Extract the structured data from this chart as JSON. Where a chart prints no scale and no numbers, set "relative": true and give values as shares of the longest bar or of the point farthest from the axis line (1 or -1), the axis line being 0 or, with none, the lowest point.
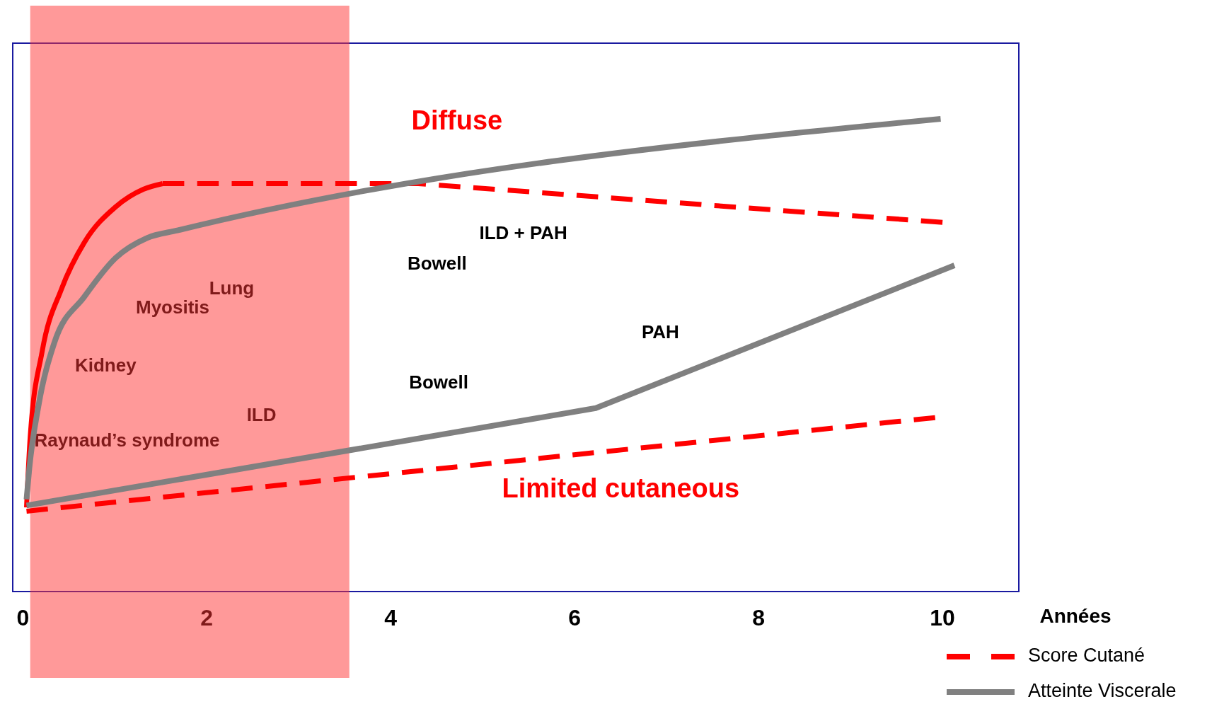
{
  "chart_data": {
    "type": "line",
    "relative": true,
    "xlabel": "Années",
    "xlim": [
      -0.11,
      10.83
    ],
    "xticks": [
      0,
      2,
      4,
      6,
      8,
      10
    ],
    "grid": false,
    "legend": "bottom right",
    "tick_labels": "x",
    "bands": [
      {
        "axis": "x",
        "from": 0.08,
        "to": 3.55,
        "color": "#ff3333"
      }
    ],
    "series": [
      {
        "color": "#ff0000",
        "line_style": "solid",
        "x": [
          0.04,
          0.08,
          0.21,
          0.42,
          0.67,
          1.01,
          1.31,
          1.52
        ],
        "values": [
          0.178,
          0.327,
          0.508,
          0.64,
          0.739,
          0.814,
          0.851,
          0.863
        ]
      },
      {
        "name": "Score Cutané",
        "color": "#ff0000",
        "line_style": "dashed",
        "x": [
          1.52,
          4.3,
          10.0
        ],
        "values": [
          0.863,
          0.863,
          0.781
        ]
      },
      {
        "name": "Atteinte Viscerale",
        "color": "#808080",
        "line_style": "solid",
        "x": [
          0.04,
          0.07,
          0.17,
          0.34,
          0.67,
          1.01,
          1.35,
          1.68,
          9.98
        ],
        "values": [
          0.195,
          0.26,
          0.393,
          0.525,
          0.624,
          0.706,
          0.748,
          0.764,
          1.0
        ]
      },
      {
        "color": "#808080",
        "line_style": "solid",
        "x": [
          0.04,
          6.23,
          10.13
        ],
        "values": [
          0.182,
          0.388,
          0.69
        ]
      },
      {
        "color": "#ff0000",
        "line_style": "dashed",
        "x": [
          0.04,
          9.92
        ],
        "values": [
          0.17,
          0.368
        ]
      }
    ],
    "annotations": [
      "Diffuse",
      "Limited cutaneous",
      "Lung",
      "Myositis",
      "Kidney",
      "ILD",
      "Raynaud’s syndrome",
      "ILD + PAH",
      "Bowell",
      "PAH",
      "Bowell"
    ]
  }
}
